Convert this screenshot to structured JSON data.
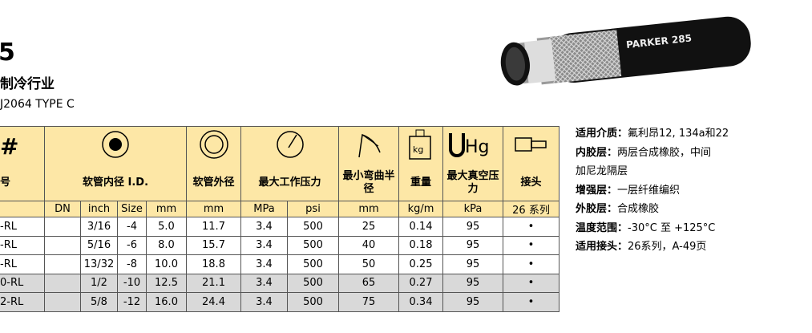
{
  "header": {
    "title_fragment": "5",
    "industry": "制冷行业",
    "standard": "J2064 TYPE C"
  },
  "hose_image": {
    "brand": "PARKER 285"
  },
  "table": {
    "model_header": {
      "symbol": "#",
      "label": "号"
    },
    "groups": [
      {
        "label": "软管内径 I.D.",
        "units": [
          "DN",
          "inch",
          "Size",
          "mm"
        ]
      },
      {
        "label": "软管外径",
        "units": [
          "mm"
        ]
      },
      {
        "label": "最大工作压力",
        "units": [
          "MPa",
          "psi"
        ]
      },
      {
        "label": "最小弯曲半径",
        "units": [
          "mm"
        ]
      },
      {
        "label": "重量",
        "units": [
          "kg/m"
        ],
        "icon_text": "kg"
      },
      {
        "label": "最大真空压力",
        "units": [
          "kPa"
        ],
        "icon_text": "Hg"
      },
      {
        "label": "接头",
        "units": [
          "26 系列"
        ]
      }
    ],
    "rows": [
      [
        "-RL",
        "3/16",
        "-4",
        "5.0",
        "11.7",
        "3.4",
        "500",
        "25",
        "0.14",
        "95",
        "•"
      ],
      [
        "-RL",
        "5/16",
        "-6",
        "8.0",
        "15.7",
        "3.4",
        "500",
        "40",
        "0.18",
        "95",
        "•"
      ],
      [
        "-RL",
        "13/32",
        "-8",
        "10.0",
        "18.8",
        "3.4",
        "500",
        "50",
        "0.25",
        "95",
        "•"
      ],
      [
        "0-RL",
        "1/2",
        "-10",
        "12.5",
        "21.1",
        "3.4",
        "500",
        "65",
        "0.27",
        "95",
        "•"
      ],
      [
        "2-RL",
        "5/8",
        "-12",
        "16.0",
        "24.4",
        "3.4",
        "500",
        "75",
        "0.34",
        "95",
        "•"
      ]
    ]
  },
  "specs": [
    {
      "label": "适用介质：",
      "text": "氟利昂12, 134a和22"
    },
    {
      "label": "内胶层：",
      "text": "两层合成橡胶，中间"
    },
    {
      "text": "加尼龙隔层"
    },
    {
      "label": "增强层：",
      "text": "一层纤维编织"
    },
    {
      "label": "外胶层：",
      "text": "合成橡胶"
    },
    {
      "label": "温度范围：",
      "text": "-30°C 至 +125°C"
    },
    {
      "label": "适用接头：",
      "text": "26系列，A-49页"
    }
  ]
}
